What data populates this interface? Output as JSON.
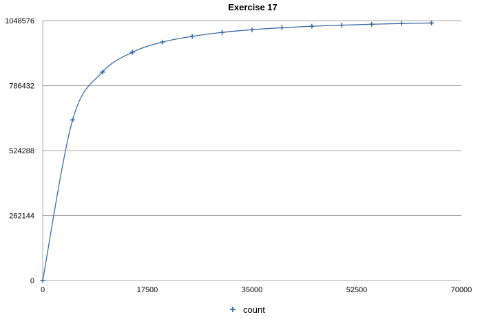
{
  "chart_data": {
    "type": "scatter",
    "title": "Exercise 17",
    "xlabel": "",
    "ylabel": "",
    "xlim": [
      0,
      70000
    ],
    "ylim": [
      0,
      1048576
    ],
    "x_ticks": [
      0,
      17500,
      35000,
      52500,
      70000
    ],
    "y_ticks": [
      0,
      262144,
      524288,
      786432,
      1048576
    ],
    "x_tick_labels": [
      "0",
      "17500",
      "35000",
      "52500",
      "70000"
    ],
    "y_tick_labels": [
      "0",
      "262144",
      "524288",
      "786432",
      "1048576"
    ],
    "grid": "horizontal",
    "legend_position": "bottom",
    "series": [
      {
        "name": "count",
        "color": "#3a6ba5",
        "marker": "plus",
        "smoothed_line": true,
        "x": [
          0,
          5000,
          10000,
          15000,
          20000,
          25000,
          30000,
          35000,
          40000,
          45000,
          50000,
          55000,
          60000,
          65000
        ],
        "y": [
          0,
          648000,
          841000,
          921000,
          962000,
          985000,
          1001000,
          1012000,
          1020000,
          1026000,
          1030000,
          1034000,
          1037000,
          1039000
        ]
      }
    ]
  }
}
